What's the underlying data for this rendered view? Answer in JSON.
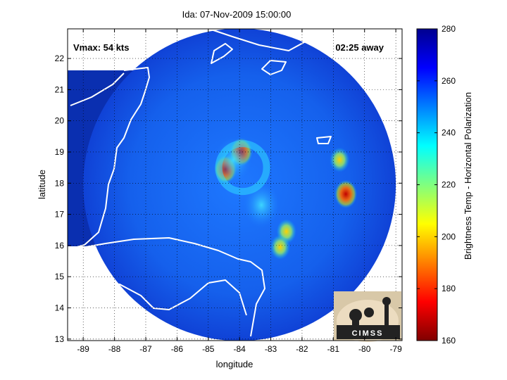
{
  "chart_data": {
    "type": "heatmap",
    "title": "Ida: 07-Nov-2009 15:00:00",
    "xlabel": "longitude",
    "ylabel": "latitude",
    "xlim": [
      -89.5,
      -78.8
    ],
    "ylim": [
      12.95,
      22.95
    ],
    "xticks": [
      -89,
      -88,
      -87,
      -86,
      -85,
      -84,
      -83,
      -82,
      -81,
      -80,
      -79
    ],
    "yticks": [
      13,
      14,
      15,
      16,
      17,
      18,
      19,
      20,
      21,
      22
    ],
    "grid": true,
    "colorbar": {
      "label": "Brightness Temp - Horizontal Polarization",
      "range": [
        160,
        280
      ],
      "ticks": [
        160,
        180,
        200,
        220,
        240,
        260,
        280
      ],
      "colormap": "jet"
    },
    "annotations": {
      "vmax": "Vmax: 54 kts",
      "time_offset": "02:25 away"
    },
    "swath": {
      "center_lon": -84.0,
      "center_lat": 17.95,
      "radius_deg": 5.0,
      "background_temp": 262
    },
    "features": [
      {
        "lon": -84.45,
        "lat": 18.45,
        "temp": 172
      },
      {
        "lon": -83.95,
        "lat": 19.0,
        "temp": 190
      },
      {
        "lon": -80.6,
        "lat": 17.65,
        "temp": 185
      },
      {
        "lon": -80.8,
        "lat": 18.75,
        "temp": 210
      },
      {
        "lon": -82.5,
        "lat": 16.45,
        "temp": 205
      },
      {
        "lon": -82.7,
        "lat": 15.95,
        "temp": 205
      },
      {
        "lon": -84.2,
        "lat": 18.75,
        "temp": 235
      },
      {
        "lon": -83.3,
        "lat": 17.3,
        "temp": 240
      }
    ]
  },
  "logo": {
    "text": "CIMSS"
  }
}
